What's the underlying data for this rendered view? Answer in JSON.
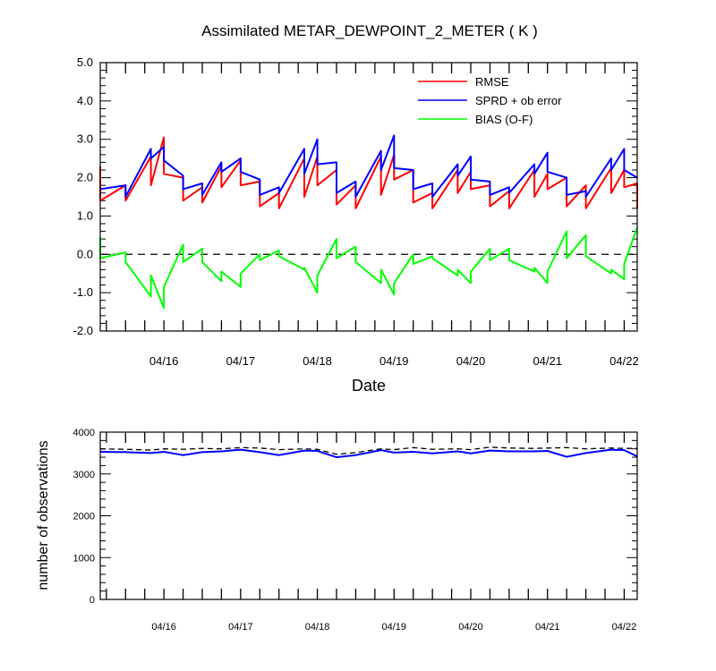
{
  "chart_data": [
    {
      "type": "line",
      "title": "Assimilated METAR_DEWPOINT_2_METER ( K )",
      "xlabel": "Date",
      "ylabel": "",
      "ylim": [
        -2.0,
        5.0
      ],
      "yticks": [
        "5.0",
        "4.0",
        "3.0",
        "2.0",
        "1.0",
        "0.0",
        "-1.0",
        "-2.0"
      ],
      "xticks": [
        "04/16",
        "04/17",
        "04/18",
        "04/19",
        "04/20",
        "04/21",
        "04/22"
      ],
      "xtick_days": [
        16,
        17,
        18,
        19,
        20,
        21,
        22
      ],
      "xlim_days": [
        15.17,
        22.17
      ],
      "zero_line": "dashed",
      "legend_position": "top-right",
      "series": [
        {
          "name": "RMSE",
          "color": "#ff0000",
          "points": [
            [
              15.17,
              2.3
            ],
            [
              15.17,
              1.4
            ],
            [
              15.5,
              1.8
            ],
            [
              15.5,
              1.4
            ],
            [
              15.83,
              2.55
            ],
            [
              15.83,
              1.8
            ],
            [
              16.0,
              3.05
            ],
            [
              16.0,
              2.1
            ],
            [
              16.25,
              2.0
            ],
            [
              16.25,
              1.4
            ],
            [
              16.5,
              1.75
            ],
            [
              16.5,
              1.35
            ],
            [
              16.75,
              2.3
            ],
            [
              16.75,
              1.75
            ],
            [
              17.0,
              2.45
            ],
            [
              17.0,
              1.8
            ],
            [
              17.25,
              1.9
            ],
            [
              17.25,
              1.25
            ],
            [
              17.5,
              1.6
            ],
            [
              17.5,
              1.2
            ],
            [
              17.83,
              2.5
            ],
            [
              17.83,
              1.5
            ],
            [
              18.0,
              2.55
            ],
            [
              18.0,
              1.8
            ],
            [
              18.25,
              2.2
            ],
            [
              18.25,
              1.3
            ],
            [
              18.5,
              1.8
            ],
            [
              18.5,
              1.2
            ],
            [
              18.83,
              2.55
            ],
            [
              18.83,
              1.55
            ],
            [
              19.0,
              2.6
            ],
            [
              19.0,
              1.95
            ],
            [
              19.25,
              2.2
            ],
            [
              19.25,
              1.35
            ],
            [
              19.5,
              1.6
            ],
            [
              19.5,
              1.2
            ],
            [
              19.83,
              2.2
            ],
            [
              19.83,
              1.6
            ],
            [
              20.0,
              2.15
            ],
            [
              20.0,
              1.7
            ],
            [
              20.25,
              1.8
            ],
            [
              20.25,
              1.25
            ],
            [
              20.5,
              1.65
            ],
            [
              20.5,
              1.2
            ],
            [
              20.83,
              2.2
            ],
            [
              20.83,
              1.5
            ],
            [
              21.0,
              2.1
            ],
            [
              21.0,
              1.7
            ],
            [
              21.25,
              2.0
            ],
            [
              21.25,
              1.25
            ],
            [
              21.5,
              1.8
            ],
            [
              21.5,
              1.2
            ],
            [
              21.83,
              2.25
            ],
            [
              21.83,
              1.6
            ],
            [
              22.0,
              2.2
            ],
            [
              22.0,
              1.75
            ],
            [
              22.17,
              1.85
            ],
            [
              22.17,
              1.2
            ]
          ]
        },
        {
          "name": "SPRD + ob error",
          "color": "#0000ff",
          "points": [
            [
              15.17,
              1.7
            ],
            [
              15.5,
              1.8
            ],
            [
              15.5,
              1.5
            ],
            [
              15.83,
              2.75
            ],
            [
              15.83,
              2.5
            ],
            [
              16.0,
              2.8
            ],
            [
              16.0,
              2.45
            ],
            [
              16.25,
              2.05
            ],
            [
              16.25,
              1.7
            ],
            [
              16.5,
              1.85
            ],
            [
              16.5,
              1.55
            ],
            [
              16.75,
              2.4
            ],
            [
              16.75,
              2.15
            ],
            [
              17.0,
              2.5
            ],
            [
              17.0,
              2.15
            ],
            [
              17.25,
              1.95
            ],
            [
              17.25,
              1.55
            ],
            [
              17.5,
              1.75
            ],
            [
              17.5,
              1.6
            ],
            [
              17.83,
              2.75
            ],
            [
              17.83,
              2.1
            ],
            [
              18.0,
              3.0
            ],
            [
              18.0,
              2.35
            ],
            [
              18.25,
              2.4
            ],
            [
              18.25,
              1.6
            ],
            [
              18.5,
              1.9
            ],
            [
              18.5,
              1.5
            ],
            [
              18.83,
              2.7
            ],
            [
              18.83,
              2.2
            ],
            [
              19.0,
              3.1
            ],
            [
              19.0,
              2.25
            ],
            [
              19.25,
              2.2
            ],
            [
              19.25,
              1.7
            ],
            [
              19.5,
              1.85
            ],
            [
              19.5,
              1.5
            ],
            [
              19.83,
              2.35
            ],
            [
              19.83,
              2.05
            ],
            [
              20.0,
              2.55
            ],
            [
              20.0,
              1.95
            ],
            [
              20.25,
              1.9
            ],
            [
              20.25,
              1.55
            ],
            [
              20.5,
              1.75
            ],
            [
              20.5,
              1.6
            ],
            [
              20.83,
              2.35
            ],
            [
              20.83,
              2.1
            ],
            [
              21.0,
              2.65
            ],
            [
              21.0,
              2.15
            ],
            [
              21.25,
              2.0
            ],
            [
              21.25,
              1.55
            ],
            [
              21.5,
              1.65
            ],
            [
              21.5,
              1.5
            ],
            [
              21.83,
              2.5
            ],
            [
              21.83,
              2.2
            ],
            [
              22.0,
              2.75
            ],
            [
              22.0,
              2.2
            ],
            [
              22.17,
              2.0
            ]
          ]
        },
        {
          "name": "BIAS (O-F)",
          "color": "#00ff00",
          "points": [
            [
              15.17,
              0.45
            ],
            [
              15.17,
              -0.1
            ],
            [
              15.5,
              0.05
            ],
            [
              15.5,
              -0.2
            ],
            [
              15.83,
              -1.1
            ],
            [
              15.83,
              -0.55
            ],
            [
              16.0,
              -1.4
            ],
            [
              16.0,
              -0.85
            ],
            [
              16.25,
              0.25
            ],
            [
              16.25,
              -0.2
            ],
            [
              16.5,
              0.15
            ],
            [
              16.5,
              -0.2
            ],
            [
              16.75,
              -0.7
            ],
            [
              16.75,
              -0.45
            ],
            [
              17.0,
              -0.85
            ],
            [
              17.0,
              -0.5
            ],
            [
              17.25,
              0.0
            ],
            [
              17.25,
              -0.15
            ],
            [
              17.5,
              0.1
            ],
            [
              17.5,
              -0.05
            ],
            [
              17.83,
              -0.4
            ],
            [
              17.83,
              -0.35
            ],
            [
              18.0,
              -1.0
            ],
            [
              18.0,
              -0.55
            ],
            [
              18.25,
              0.4
            ],
            [
              18.25,
              -0.1
            ],
            [
              18.5,
              0.2
            ],
            [
              18.5,
              -0.2
            ],
            [
              18.83,
              -0.75
            ],
            [
              18.83,
              -0.4
            ],
            [
              19.0,
              -1.05
            ],
            [
              19.0,
              -0.75
            ],
            [
              19.25,
              0.0
            ],
            [
              19.25,
              -0.25
            ],
            [
              19.5,
              -0.05
            ],
            [
              19.5,
              -0.1
            ],
            [
              19.83,
              -0.55
            ],
            [
              19.83,
              -0.4
            ],
            [
              20.0,
              -0.75
            ],
            [
              20.0,
              -0.45
            ],
            [
              20.25,
              0.15
            ],
            [
              20.25,
              -0.15
            ],
            [
              20.5,
              0.15
            ],
            [
              20.5,
              -0.15
            ],
            [
              20.83,
              -0.45
            ],
            [
              20.83,
              -0.35
            ],
            [
              21.0,
              -0.75
            ],
            [
              21.0,
              -0.45
            ],
            [
              21.25,
              0.6
            ],
            [
              21.25,
              -0.1
            ],
            [
              21.5,
              0.5
            ],
            [
              21.5,
              -0.05
            ],
            [
              21.83,
              -0.5
            ],
            [
              21.83,
              -0.4
            ],
            [
              22.0,
              -0.65
            ],
            [
              22.0,
              -0.25
            ],
            [
              22.17,
              0.7
            ]
          ]
        }
      ]
    },
    {
      "type": "line",
      "title": "",
      "xlabel": "",
      "ylabel": "number of observations",
      "ylim": [
        0,
        4000
      ],
      "yticks": [
        "4000",
        "3000",
        "2000",
        "1000",
        "0"
      ],
      "xticks": [
        "04/16",
        "04/17",
        "04/18",
        "04/19",
        "04/20",
        "04/21",
        "04/22"
      ],
      "xtick_days": [
        16,
        17,
        18,
        19,
        20,
        21,
        22
      ],
      "xlim_days": [
        15.17,
        22.17
      ],
      "series": [
        {
          "color": "#000000",
          "dashed": true,
          "points": [
            [
              15.17,
              3600
            ],
            [
              15.5,
              3590
            ],
            [
              15.83,
              3570
            ],
            [
              16.0,
              3600
            ],
            [
              16.25,
              3590
            ],
            [
              16.5,
              3610
            ],
            [
              16.75,
              3600
            ],
            [
              17.0,
              3630
            ],
            [
              17.25,
              3620
            ],
            [
              17.5,
              3580
            ],
            [
              17.83,
              3600
            ],
            [
              18.0,
              3590
            ],
            [
              18.25,
              3470
            ],
            [
              18.5,
              3510
            ],
            [
              18.83,
              3600
            ],
            [
              19.0,
              3580
            ],
            [
              19.25,
              3630
            ],
            [
              19.5,
              3590
            ],
            [
              19.83,
              3600
            ],
            [
              20.0,
              3580
            ],
            [
              20.25,
              3640
            ],
            [
              20.5,
              3620
            ],
            [
              20.83,
              3610
            ],
            [
              21.0,
              3620
            ],
            [
              21.25,
              3630
            ],
            [
              21.5,
              3600
            ],
            [
              21.83,
              3620
            ],
            [
              22.0,
              3610
            ],
            [
              22.17,
              3610
            ]
          ]
        },
        {
          "color": "#0000ff",
          "dashed": false,
          "points": [
            [
              15.17,
              3530
            ],
            [
              15.5,
              3520
            ],
            [
              15.83,
              3500
            ],
            [
              16.0,
              3530
            ],
            [
              16.25,
              3450
            ],
            [
              16.5,
              3520
            ],
            [
              16.75,
              3540
            ],
            [
              17.0,
              3580
            ],
            [
              17.25,
              3520
            ],
            [
              17.5,
              3450
            ],
            [
              17.83,
              3560
            ],
            [
              18.0,
              3550
            ],
            [
              18.25,
              3400
            ],
            [
              18.5,
              3450
            ],
            [
              18.83,
              3570
            ],
            [
              19.0,
              3510
            ],
            [
              19.25,
              3530
            ],
            [
              19.5,
              3490
            ],
            [
              19.83,
              3540
            ],
            [
              20.0,
              3490
            ],
            [
              20.25,
              3560
            ],
            [
              20.5,
              3540
            ],
            [
              20.83,
              3540
            ],
            [
              21.0,
              3550
            ],
            [
              21.25,
              3410
            ],
            [
              21.5,
              3500
            ],
            [
              21.83,
              3580
            ],
            [
              22.0,
              3570
            ],
            [
              22.17,
              3420
            ]
          ]
        }
      ]
    }
  ]
}
